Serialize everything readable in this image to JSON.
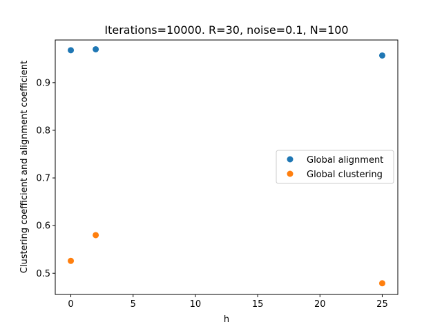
{
  "chart_data": {
    "type": "scatter",
    "title": "Iterations=10000. R=30, noise=0.1, N=100",
    "xlabel": "h",
    "ylabel": "Clustering coefficient and alignment coefficient",
    "xlim": [
      -1.25,
      26.25
    ],
    "ylim": [
      0.4555,
      0.9895
    ],
    "xticks": [
      0,
      5,
      10,
      15,
      20,
      25
    ],
    "yticks": [
      0.5,
      0.6,
      0.7,
      0.8,
      0.9
    ],
    "grid": false,
    "legend_position": "center right",
    "series": [
      {
        "name": "Global alignment",
        "color": "#1f77b4",
        "x": [
          0,
          2,
          25
        ],
        "y": [
          0.968,
          0.97,
          0.957
        ]
      },
      {
        "name": "Global clustering",
        "color": "#ff7f0e",
        "x": [
          0,
          2,
          25
        ],
        "y": [
          0.526,
          0.58,
          0.479
        ]
      }
    ]
  }
}
